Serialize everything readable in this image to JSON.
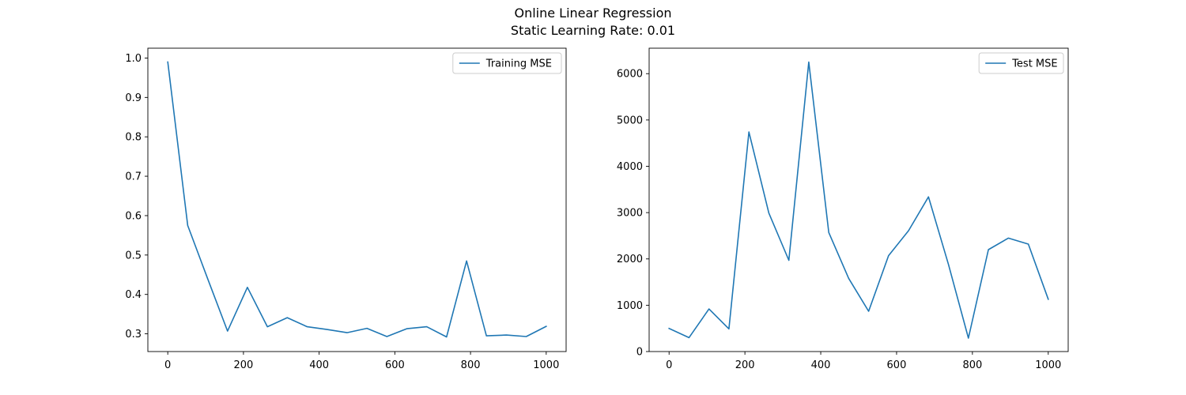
{
  "figure": {
    "title_line1": "Online Linear Regression",
    "title_line2": "Static Learning Rate: 0.01"
  },
  "chart_data": [
    {
      "type": "line",
      "xlim": [
        -52.6,
        1052.6
      ],
      "ylim": [
        0.255,
        1.025
      ],
      "xticks": [
        0,
        200,
        400,
        600,
        800,
        1000
      ],
      "xtick_labels": [
        "0",
        "200",
        "400",
        "600",
        "800",
        "1000"
      ],
      "yticks": [
        0.3,
        0.4,
        0.5,
        0.6,
        0.7,
        0.8,
        0.9,
        1.0
      ],
      "ytick_labels": [
        "0.3",
        "0.4",
        "0.5",
        "0.6",
        "0.7",
        "0.8",
        "0.9",
        "1.0"
      ],
      "grid": false,
      "legend_position": "top-right",
      "color": "#1f77b4",
      "series": [
        {
          "name": "Training MSE",
          "x": [
            0,
            52.6,
            105.3,
            157.9,
            210.5,
            263.2,
            315.8,
            368.4,
            421.1,
            473.7,
            526.3,
            578.9,
            631.6,
            684.2,
            736.8,
            789.5,
            842.1,
            894.7,
            947.4,
            1000
          ],
          "y": [
            0.99,
            0.575,
            0.44,
            0.307,
            0.418,
            0.318,
            0.341,
            0.318,
            0.311,
            0.303,
            0.314,
            0.293,
            0.313,
            0.318,
            0.292,
            0.485,
            0.295,
            0.297,
            0.293,
            0.319
          ]
        }
      ]
    },
    {
      "type": "line",
      "xlim": [
        -52.6,
        1052.6
      ],
      "ylim": [
        0,
        6550
      ],
      "xticks": [
        0,
        200,
        400,
        600,
        800,
        1000
      ],
      "xtick_labels": [
        "0",
        "200",
        "400",
        "600",
        "800",
        "1000"
      ],
      "yticks": [
        0,
        1000,
        2000,
        3000,
        4000,
        5000,
        6000
      ],
      "ytick_labels": [
        "0",
        "1000",
        "2000",
        "3000",
        "4000",
        "5000",
        "6000"
      ],
      "grid": false,
      "legend_position": "top-right",
      "color": "#1f77b4",
      "series": [
        {
          "name": "Test MSE",
          "x": [
            0,
            52.6,
            105.3,
            157.9,
            210.5,
            263.2,
            315.8,
            368.4,
            421.1,
            473.7,
            526.3,
            578.9,
            631.6,
            684.2,
            736.8,
            789.5,
            842.1,
            894.7,
            947.4,
            1000
          ],
          "y": [
            500,
            300,
            920,
            490,
            4740,
            2990,
            1970,
            6250,
            2570,
            1580,
            870,
            2070,
            2610,
            3340,
            1880,
            290,
            2200,
            2450,
            2320,
            1130
          ]
        }
      ]
    }
  ]
}
